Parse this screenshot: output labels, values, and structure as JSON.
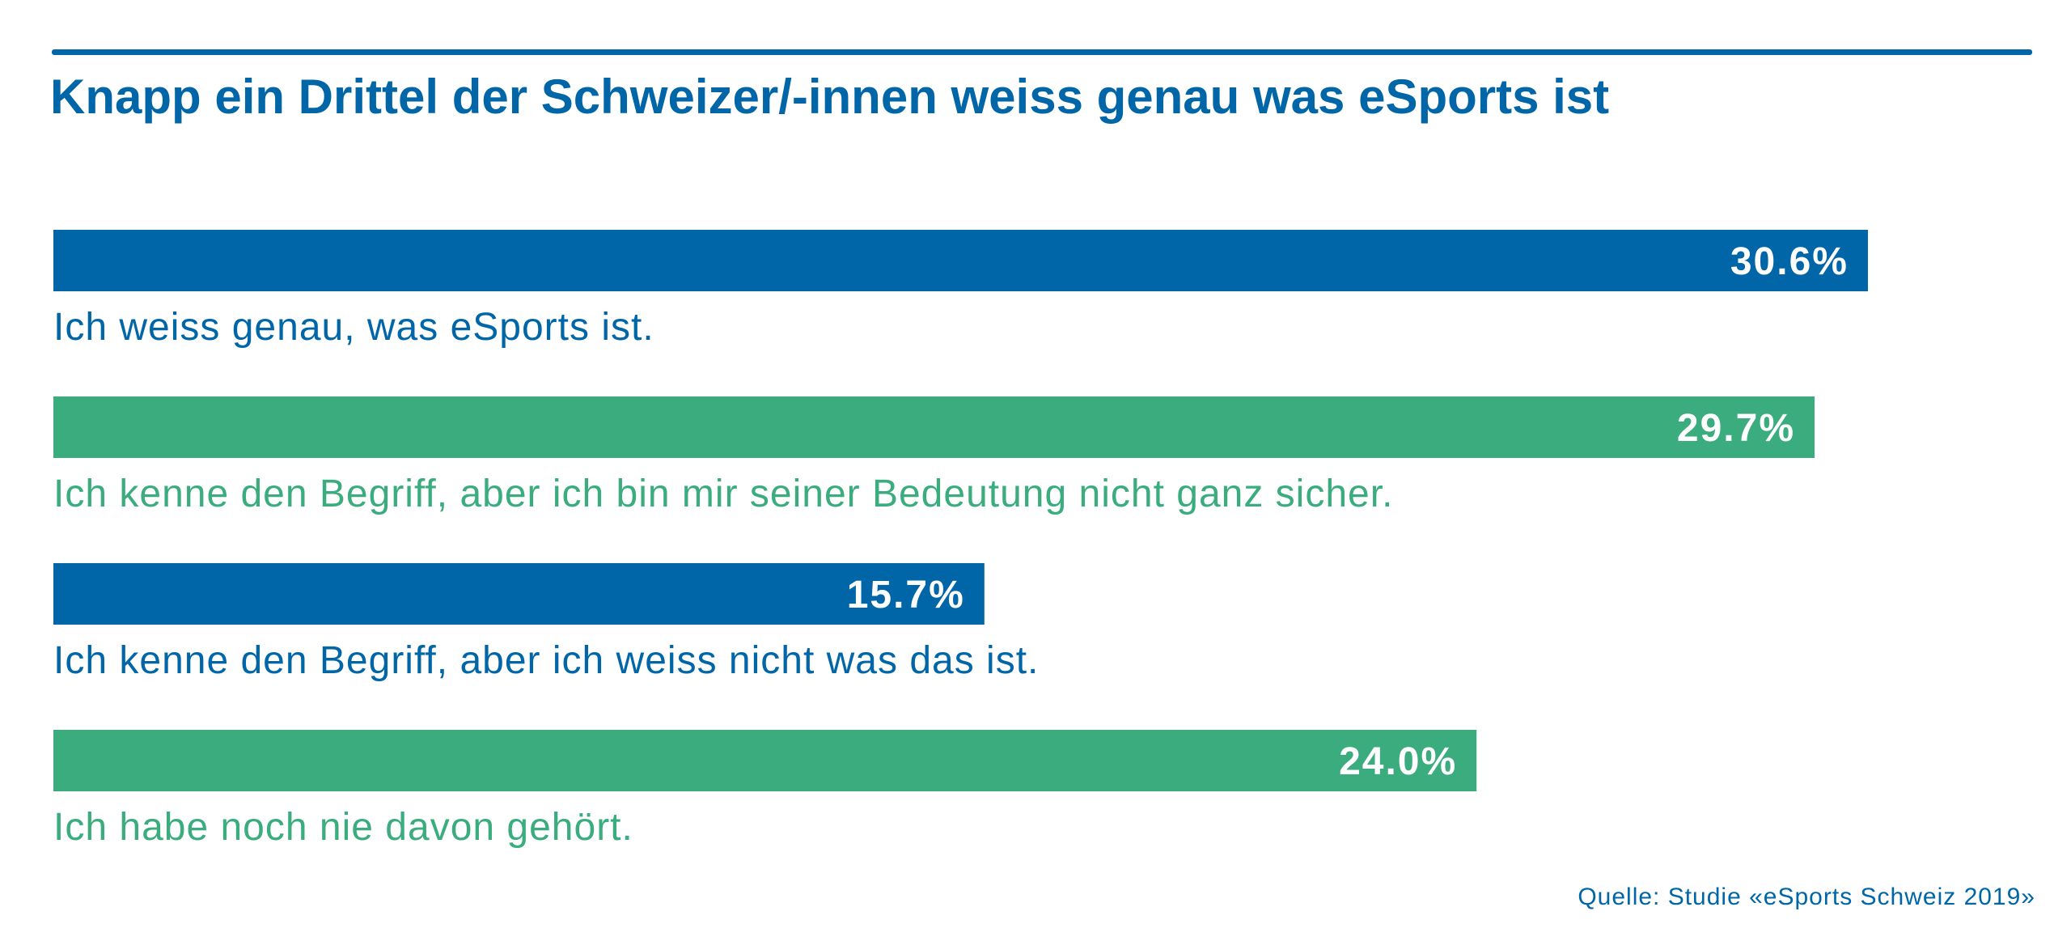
{
  "colors": {
    "blue": "#0066a8",
    "green": "#3aac7e",
    "bar_label": "#ffffff"
  },
  "title": "Knapp ein Drittel der Schweizer/-innen weiss genau was eSports ist",
  "source": "Quelle: Studie «eSports Schweiz 2019»",
  "chart_data": {
    "type": "bar",
    "orientation": "horizontal",
    "title": "Knapp ein Drittel der Schweizer/-innen weiss genau was eSports ist",
    "xlim": [
      0,
      34
    ],
    "unit": "%",
    "grid": false,
    "legend": "none",
    "categories": [
      "Ich weiss genau, was eSports ist.",
      "Ich kenne den Begriff, aber ich bin mir seiner Bedeutung nicht ganz sicher.",
      "Ich kenne den Begriff, aber ich weiss nicht was das ist.",
      "Ich habe noch nie davon gehört."
    ],
    "values": [
      30.6,
      29.7,
      15.7,
      24.0
    ],
    "value_labels": [
      "30.6%",
      "29.7%",
      "15.7%",
      "24.0%"
    ],
    "bar_colors": [
      "#0066a8",
      "#3aac7e",
      "#0066a8",
      "#3aac7e"
    ]
  }
}
